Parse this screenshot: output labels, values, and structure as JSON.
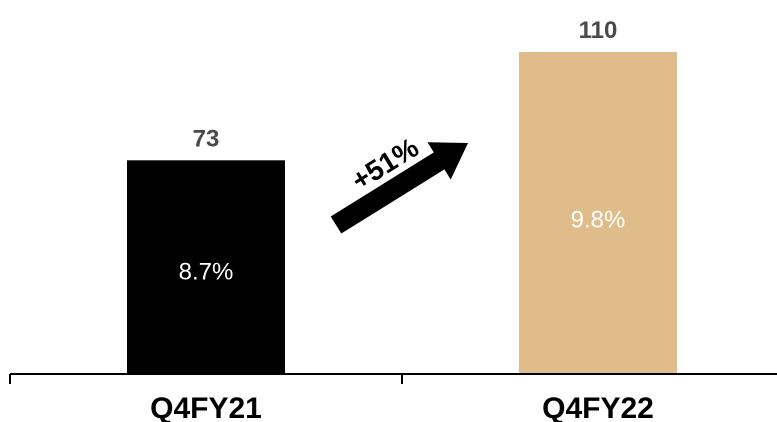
{
  "chart_data": {
    "type": "bar",
    "categories": [
      "Q4FY21",
      "Q4FY22"
    ],
    "values": [
      73,
      110
    ],
    "value_labels": [
      "73",
      "110"
    ],
    "inner_labels": [
      "8.7%",
      "9.8%"
    ],
    "bar_colors": [
      "#000000",
      "#dfbc8a"
    ],
    "ylim": [
      0,
      110
    ],
    "grid": false,
    "legend": "none",
    "annotation": {
      "text": "+51%",
      "from": "Q4FY21",
      "to": "Q4FY22"
    }
  },
  "colors": {
    "axis": "#000000",
    "value_text": "#4a4a4a",
    "inner_text": "#ffffff",
    "arrow": "#000000"
  }
}
